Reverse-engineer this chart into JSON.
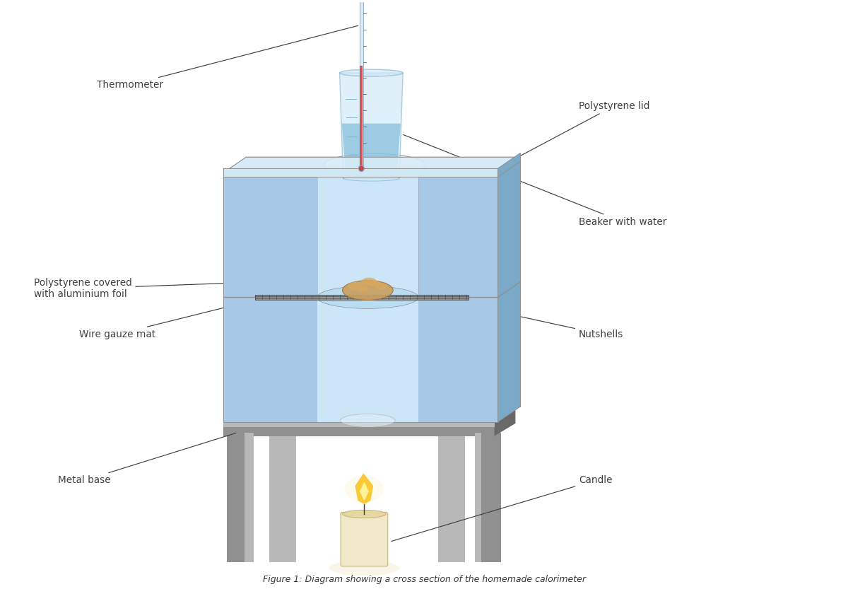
{
  "title": "Figure 1: Diagram showing a cross section of the homemade calorimeter",
  "bg_color": "#ffffff",
  "labels": {
    "thermometer": "Thermometer",
    "polystyrene_lid": "Polystyrene lid",
    "polystyrene_covered": "Polystyrene covered\nwith aluminium foil",
    "beaker_with_water": "Beaker with water",
    "wire_gauze_mat": "Wire gauze mat",
    "nutshells": "Nutshells",
    "metal_base": "Metal base",
    "candle": "Candle"
  },
  "colors": {
    "polystyrene_blue": "#a8c8e8",
    "polystyrene_dark": "#7aaac8",
    "polystyrene_light": "#c8dff0",
    "metal_gray": "#909090",
    "metal_light": "#b8b8b8",
    "metal_dark": "#686868",
    "beaker_water": "#7ab8d8",
    "beaker_glass": "#d0e8f8",
    "thermometer_glass": "#d0e8f8",
    "thermometer_mercury": "#cc4444",
    "candle_body": "#f0e8c8",
    "candle_flame_outer": "#f8d060",
    "nutshell_color": "#c8a060",
    "wire_color": "#606060",
    "label_line_color": "#404040",
    "label_text_color": "#404040",
    "heat_glow": "#f8e080",
    "hole_color": "#e8f4fc"
  }
}
